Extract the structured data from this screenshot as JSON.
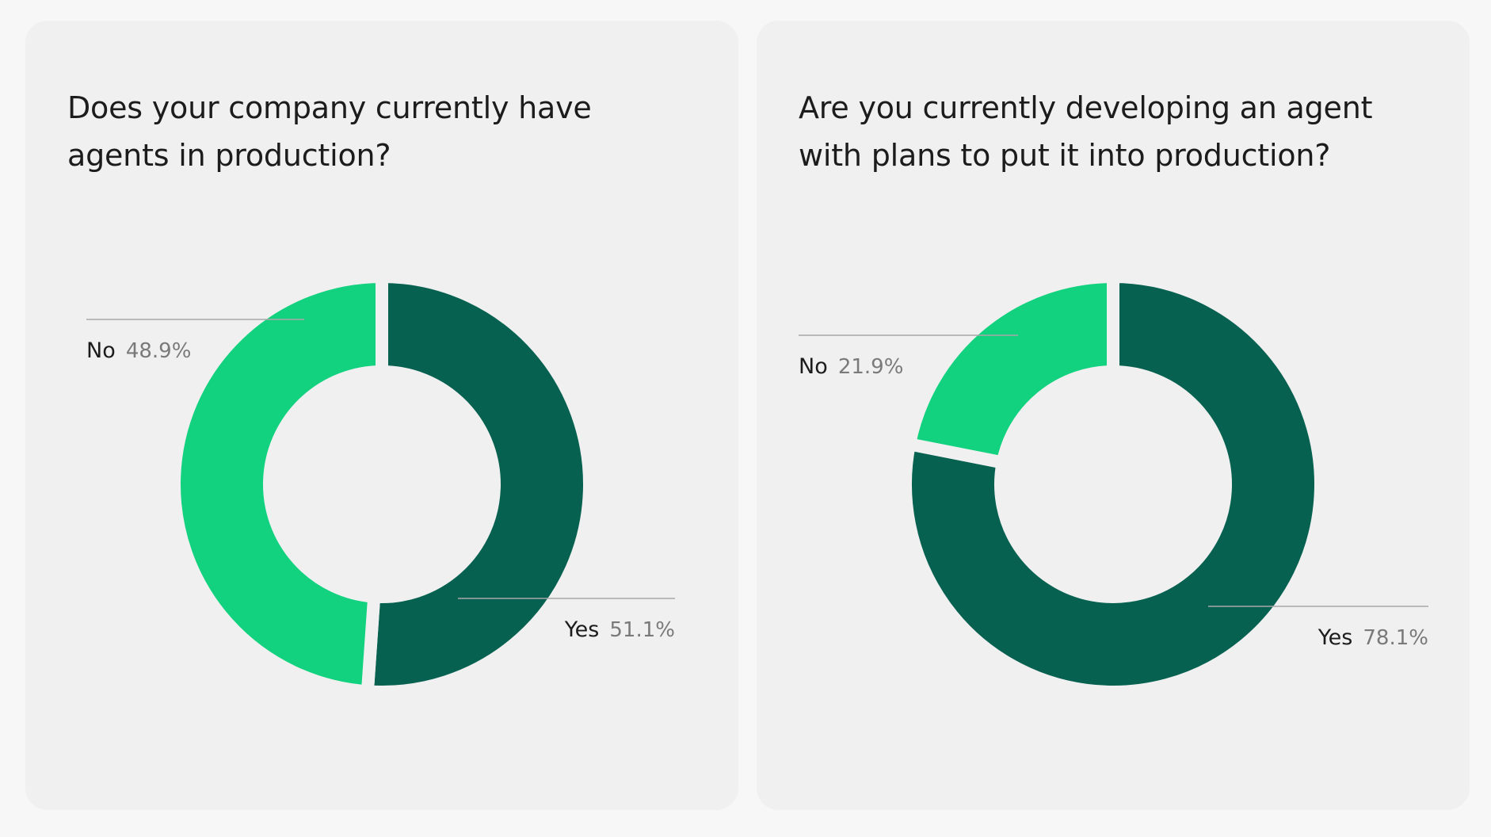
{
  "colors": {
    "yes": "#066150",
    "no": "#13d27f",
    "gap": "#f0f0f0",
    "leader": "#a8a8a8"
  },
  "chart_data": [
    {
      "type": "pie",
      "variant": "donut",
      "title": "Does your company currently have agents in production?",
      "slices": [
        {
          "label": "Yes",
          "value": 51.1,
          "value_label": "51.1%"
        },
        {
          "label": "No",
          "value": 48.9,
          "value_label": "48.9%"
        }
      ]
    },
    {
      "type": "pie",
      "variant": "donut",
      "title": "Are you currently developing an agent with plans to put it into production?",
      "slices": [
        {
          "label": "Yes",
          "value": 78.1,
          "value_label": "78.1%"
        },
        {
          "label": "No",
          "value": 21.9,
          "value_label": "21.9%"
        }
      ]
    }
  ]
}
